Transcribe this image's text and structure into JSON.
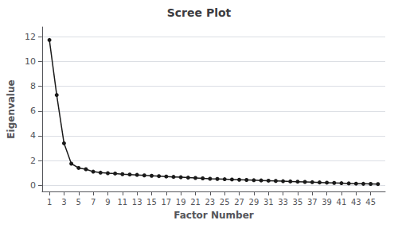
{
  "chart_data": {
    "type": "line",
    "title": "Scree Plot",
    "xlabel": "Factor Number",
    "ylabel": "Eigenvalue",
    "x": [
      1,
      2,
      3,
      4,
      5,
      6,
      7,
      8,
      9,
      10,
      11,
      12,
      13,
      14,
      15,
      16,
      17,
      18,
      19,
      20,
      21,
      22,
      23,
      24,
      25,
      26,
      27,
      28,
      29,
      30,
      31,
      32,
      33,
      34,
      35,
      36,
      37,
      38,
      39,
      40,
      41,
      42,
      43,
      44,
      45,
      46
    ],
    "values": [
      11.75,
      7.3,
      3.4,
      1.75,
      1.4,
      1.3,
      1.1,
      1.02,
      0.98,
      0.95,
      0.9,
      0.87,
      0.84,
      0.8,
      0.77,
      0.74,
      0.71,
      0.68,
      0.65,
      0.62,
      0.59,
      0.56,
      0.53,
      0.51,
      0.49,
      0.47,
      0.45,
      0.43,
      0.41,
      0.39,
      0.37,
      0.35,
      0.33,
      0.31,
      0.29,
      0.27,
      0.25,
      0.23,
      0.21,
      0.19,
      0.17,
      0.15,
      0.13,
      0.12,
      0.11,
      0.1
    ],
    "color": "#1a1a1a",
    "marker": "circle",
    "xlim": [
      0,
      47
    ],
    "xticks": [
      1,
      3,
      5,
      7,
      9,
      11,
      13,
      15,
      17,
      19,
      21,
      23,
      25,
      27,
      29,
      31,
      33,
      35,
      37,
      39,
      41,
      43,
      45
    ],
    "ylim": [
      -0.5,
      12.8
    ],
    "yticks": [
      0,
      2,
      4,
      6,
      8,
      10,
      12
    ],
    "grid": true
  }
}
